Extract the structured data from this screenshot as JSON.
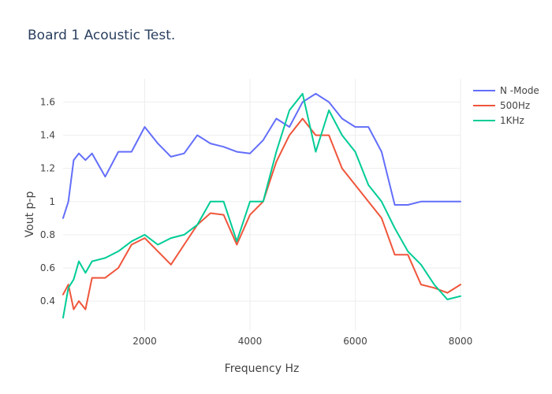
{
  "chart_data": {
    "type": "line",
    "title": "Board 1 Acoustic Test.",
    "xlabel": "Frequency Hz",
    "ylabel": "Vout p-p",
    "xlim": [
      450,
      8000
    ],
    "ylim": [
      0.22,
      1.74
    ],
    "x_ticks": [
      2000,
      4000,
      6000,
      8000
    ],
    "x_tick_labels": [
      "2000",
      "4000",
      "6000",
      "8000"
    ],
    "y_ticks": [
      0.4,
      0.6,
      0.8,
      1.0,
      1.2,
      1.4,
      1.6
    ],
    "y_tick_labels": [
      "0.4",
      "0.6",
      "0.8",
      "1",
      "1.2",
      "1.4",
      "1.6"
    ],
    "grid": true,
    "legend_position": "top-right",
    "x": [
      450,
      550,
      650,
      750,
      875,
      1000,
      1250,
      1500,
      1750,
      2000,
      2250,
      2500,
      2750,
      3000,
      3250,
      3500,
      3750,
      4000,
      4250,
      4500,
      4750,
      5000,
      5250,
      5500,
      5750,
      6000,
      6250,
      6500,
      6750,
      7000,
      7250,
      7500,
      7750,
      8000
    ],
    "series": [
      {
        "name": "N -Mode",
        "color": "#636efa",
        "values": [
          0.9,
          1.0,
          1.25,
          1.29,
          1.25,
          1.29,
          1.15,
          1.3,
          1.3,
          1.45,
          1.35,
          1.27,
          1.29,
          1.4,
          1.35,
          1.33,
          1.3,
          1.29,
          1.37,
          1.5,
          1.45,
          1.6,
          1.65,
          1.6,
          1.5,
          1.45,
          1.45,
          1.3,
          0.98,
          0.98,
          1.0,
          1.0,
          1.0,
          1.0
        ]
      },
      {
        "name": "500Hz",
        "color": "#ef553b",
        "values": [
          0.44,
          0.5,
          0.35,
          0.4,
          0.35,
          0.54,
          0.54,
          0.6,
          0.74,
          0.78,
          0.7,
          0.62,
          0.74,
          0.86,
          0.93,
          0.92,
          0.74,
          0.92,
          1.0,
          1.24,
          1.4,
          1.5,
          1.4,
          1.4,
          1.2,
          1.1,
          1.0,
          0.9,
          0.68,
          0.68,
          0.5,
          0.48,
          0.45,
          0.5
        ]
      },
      {
        "name": "1KHz",
        "color": "#00cc96",
        "values": [
          0.3,
          0.48,
          0.53,
          0.64,
          0.57,
          0.64,
          0.66,
          0.7,
          0.76,
          0.8,
          0.74,
          0.78,
          0.8,
          0.86,
          1.0,
          1.0,
          0.76,
          1.0,
          1.0,
          1.3,
          1.55,
          1.65,
          1.3,
          1.55,
          1.4,
          1.3,
          1.1,
          1.0,
          0.84,
          0.7,
          0.62,
          0.5,
          0.41,
          0.43
        ]
      }
    ]
  }
}
